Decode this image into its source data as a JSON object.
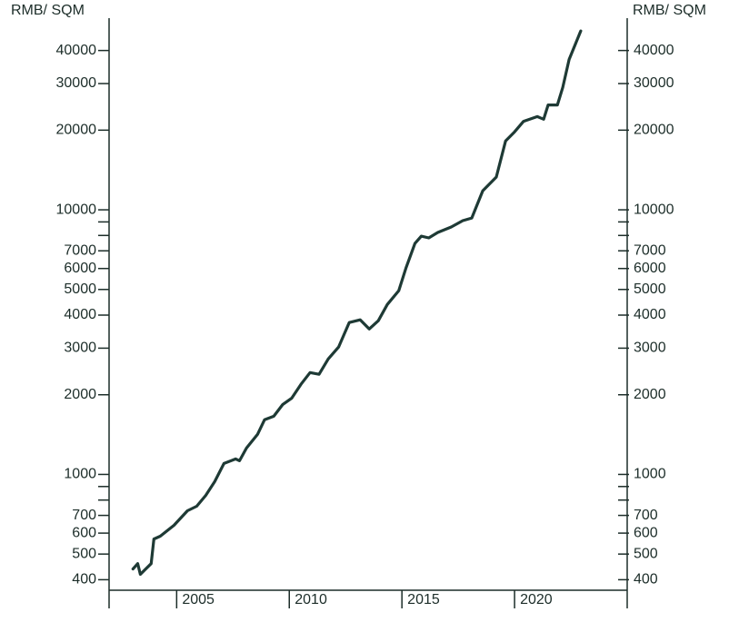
{
  "chart_data": {
    "type": "line",
    "y_label": "RMB/ SQM",
    "log_y": true,
    "xlim": [
      2002,
      2025
    ],
    "xticks": [
      2005,
      2010,
      2015,
      2020
    ],
    "ylim": [
      365,
      53000
    ],
    "yticks": [
      400,
      500,
      600,
      700,
      1000,
      2000,
      3000,
      4000,
      5000,
      6000,
      7000,
      10000,
      20000,
      30000,
      40000
    ],
    "minor_yticks": [
      800,
      900,
      8000,
      9000
    ],
    "series": [
      {
        "color": "#1e3a35",
        "x": [
          2003.06,
          2003.27,
          2003.39,
          2003.59,
          2003.87,
          2003.99,
          2004.27,
          2004.88,
          2005.48,
          2005.89,
          2006.29,
          2006.69,
          2007.1,
          2007.62,
          2007.79,
          2008.1,
          2008.59,
          2008.9,
          2009.31,
          2009.71,
          2010.11,
          2010.52,
          2010.92,
          2011.32,
          2011.73,
          2012.19,
          2012.66,
          2013.15,
          2013.55,
          2013.95,
          2014.35,
          2014.86,
          2015.18,
          2015.58,
          2015.86,
          2016.19,
          2016.59,
          2017.19,
          2017.7,
          2018.1,
          2018.59,
          2019.19,
          2019.6,
          2020.0,
          2020.4,
          2021.01,
          2021.29,
          2021.49,
          2021.9,
          2022.14,
          2022.42,
          2022.94
        ],
        "values": [
          439,
          460,
          419,
          436,
          460,
          570,
          584,
          642,
          729,
          758,
          833,
          939,
          1100,
          1144,
          1126,
          1258,
          1416,
          1608,
          1659,
          1839,
          1943,
          2190,
          2425,
          2390,
          2731,
          3030,
          3750,
          3840,
          3545,
          3810,
          4387,
          4948,
          6025,
          7460,
          7950,
          7830,
          8210,
          8610,
          9100,
          9310,
          11800,
          13300,
          18200,
          19700,
          21600,
          22500,
          22000,
          24900,
          24900,
          29000,
          37000,
          47400
        ]
      }
    ]
  }
}
